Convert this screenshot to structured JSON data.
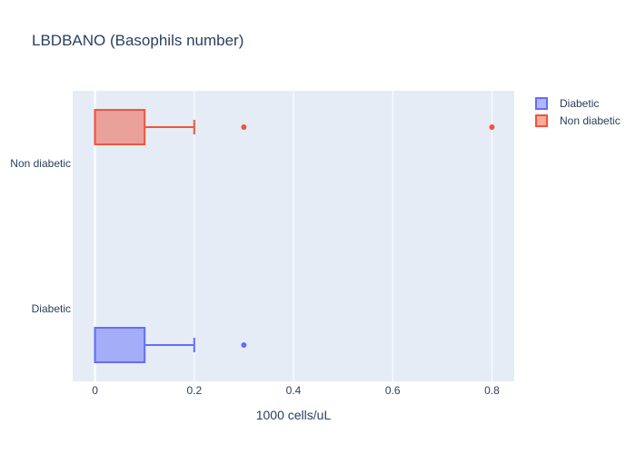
{
  "chart_data": {
    "type": "box",
    "orientation": "horizontal",
    "title": "LBDBANO (Basophils number)",
    "xlabel": "1000 cells/uL",
    "ylabel": "",
    "xlim": [
      -0.045,
      0.845
    ],
    "xticks": [
      {
        "value": 0,
        "label": "0"
      },
      {
        "value": 0.2,
        "label": "0.2"
      },
      {
        "value": 0.4,
        "label": "0.4"
      },
      {
        "value": 0.6,
        "label": "0.6"
      },
      {
        "value": 0.8,
        "label": "0.8"
      }
    ],
    "categories": [
      "Diabetic",
      "Non diabetic"
    ],
    "grid": true,
    "legend_position": "top-right",
    "series": [
      {
        "name": "Diabetic",
        "color": "#636efa",
        "fill": "rgba(99,110,250,0.5)",
        "min": 0,
        "q1": 0,
        "median": 0,
        "q3": 0.1,
        "whisker_high": 0.2,
        "outliers": [
          0.3
        ]
      },
      {
        "name": "Non diabetic",
        "color": "#ef553b",
        "fill": "rgba(239,85,59,0.5)",
        "min": 0,
        "q1": 0,
        "median": 0,
        "q3": 0.1,
        "whisker_high": 0.2,
        "outliers": [
          0.3,
          0.8
        ]
      }
    ]
  }
}
